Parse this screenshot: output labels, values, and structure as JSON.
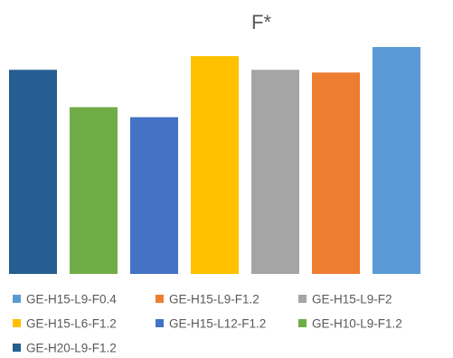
{
  "chart_data": {
    "type": "bar",
    "title": "F*",
    "xlabel": "",
    "ylabel": "",
    "ylim": [
      0,
      1
    ],
    "grid": false,
    "legend_position": "bottom",
    "series": [
      {
        "name": "GE-H20-L9-F1.2",
        "color": "#255E91",
        "value": 0.896
      },
      {
        "name": "GE-H10-L9-F1.2",
        "color": "#70AD47",
        "value": 0.732
      },
      {
        "name": "GE-H15-L12-F1.2",
        "color": "#4472C4",
        "value": 0.688
      },
      {
        "name": "GE-H15-L6-F1.2",
        "color": "#FFC000",
        "value": 0.956
      },
      {
        "name": "GE-H15-L9-F2",
        "color": "#A5A5A5",
        "value": 0.896
      },
      {
        "name": "GE-H15-L9-F1.2",
        "color": "#ED7D31",
        "value": 0.884
      },
      {
        "name": "GE-H15-L9-F0.4",
        "color": "#5B9BD5",
        "value": 0.996
      }
    ],
    "legend_order": [
      "GE-H15-L9-F0.4",
      "GE-H15-L9-F1.2",
      "GE-H15-L9-F2",
      "GE-H15-L6-F1.2",
      "GE-H15-L12-F1.2",
      "GE-H10-L9-F1.2",
      "GE-H20-L9-F1.2"
    ]
  }
}
